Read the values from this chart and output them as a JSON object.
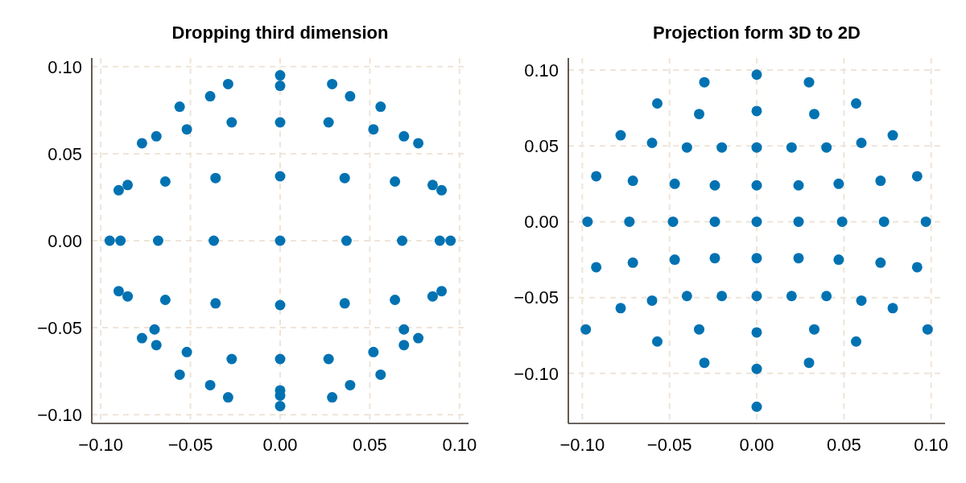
{
  "chart_data": [
    {
      "type": "scatter",
      "title": "Dropping third dimension",
      "color": "#0072b2",
      "marker": "circle",
      "grid": true,
      "xlim": [
        -0.105,
        0.105
      ],
      "ylim": [
        -0.105,
        0.105
      ],
      "xticks": [
        {
          "value": -0.1,
          "label": "−0.10"
        },
        {
          "value": -0.05,
          "label": "−0.05"
        },
        {
          "value": 0,
          "label": "0.00"
        },
        {
          "value": 0.05,
          "label": "0.05"
        },
        {
          "value": 0.1,
          "label": "0.10"
        }
      ],
      "yticks": [
        {
          "value": -0.1,
          "label": "−0.10"
        },
        {
          "value": -0.05,
          "label": "−0.05"
        },
        {
          "value": 0,
          "label": "0.00"
        },
        {
          "value": 0.05,
          "label": "0.05"
        },
        {
          "value": 0.1,
          "label": "0.10"
        }
      ],
      "x": [
        0,
        0,
        -0.029,
        0.029,
        -0.039,
        0.039,
        -0.056,
        0.056,
        -0.027,
        0.027,
        0,
        -0.052,
        0.052,
        -0.069,
        0.069,
        -0.077,
        0.077,
        0,
        -0.036,
        0.036,
        -0.064,
        0.064,
        -0.085,
        0.085,
        -0.09,
        0.09,
        -0.095,
        -0.089,
        -0.068,
        -0.037,
        0,
        0.037,
        0.068,
        0.089,
        0.095,
        -0.09,
        0.09,
        -0.085,
        0.085,
        -0.064,
        0.064,
        -0.036,
        0.036,
        0,
        -0.07,
        0.069,
        -0.077,
        0.077,
        -0.069,
        0.069,
        -0.052,
        0.052,
        -0.027,
        0.027,
        0,
        -0.056,
        0.056,
        -0.039,
        0.039,
        -0.029,
        0.029,
        0,
        0,
        0
      ],
      "values": [
        0.095,
        0.089,
        0.09,
        0.09,
        0.083,
        0.083,
        0.077,
        0.077,
        0.068,
        0.068,
        0.068,
        0.064,
        0.064,
        0.06,
        0.06,
        0.056,
        0.056,
        0.037,
        0.036,
        0.036,
        0.034,
        0.034,
        0.032,
        0.032,
        0.029,
        0.029,
        0,
        0,
        0,
        0,
        0,
        0,
        0,
        0,
        0,
        -0.029,
        -0.029,
        -0.032,
        -0.032,
        -0.034,
        -0.034,
        -0.036,
        -0.036,
        -0.037,
        -0.051,
        -0.051,
        -0.056,
        -0.056,
        -0.06,
        -0.06,
        -0.064,
        -0.064,
        -0.068,
        -0.068,
        -0.068,
        -0.077,
        -0.077,
        -0.083,
        -0.083,
        -0.09,
        -0.09,
        -0.086,
        -0.089,
        -0.095
      ]
    },
    {
      "type": "scatter",
      "title": "Projection form 3D to 2D",
      "color": "#0072b2",
      "marker": "circle",
      "grid": true,
      "xlim": [
        -0.108,
        0.108
      ],
      "ylim": [
        -0.133,
        0.108
      ],
      "xticks": [
        {
          "value": -0.1,
          "label": "−0.10"
        },
        {
          "value": -0.05,
          "label": "−0.05"
        },
        {
          "value": 0,
          "label": "0.00"
        },
        {
          "value": 0.05,
          "label": "0.05"
        },
        {
          "value": 0.1,
          "label": "0.10"
        }
      ],
      "yticks": [
        {
          "value": -0.1,
          "label": "−0.10"
        },
        {
          "value": -0.05,
          "label": "−0.05"
        },
        {
          "value": 0,
          "label": "0.00"
        },
        {
          "value": 0.05,
          "label": "0.05"
        },
        {
          "value": 0.1,
          "label": "0.10"
        }
      ],
      "x": [
        0,
        -0.03,
        0.03,
        -0.057,
        0.057,
        0,
        -0.033,
        0.033,
        -0.078,
        0.078,
        -0.06,
        0.06,
        -0.04,
        0.04,
        -0.02,
        0.02,
        0,
        -0.092,
        0.092,
        -0.071,
        0.071,
        -0.047,
        0.047,
        -0.024,
        0.024,
        0,
        -0.097,
        -0.073,
        -0.048,
        -0.024,
        0,
        0.024,
        0.049,
        0.073,
        0.097,
        -0.092,
        0.092,
        -0.071,
        0.071,
        -0.047,
        0.047,
        -0.024,
        0.024,
        0,
        -0.06,
        0.06,
        -0.078,
        0.078,
        -0.04,
        0.04,
        -0.02,
        0.02,
        0,
        -0.098,
        0.098,
        -0.033,
        0.033,
        0,
        -0.057,
        0.057,
        -0.03,
        0.03,
        0,
        0
      ],
      "values": [
        0.097,
        0.092,
        0.092,
        0.078,
        0.078,
        0.073,
        0.071,
        0.071,
        0.057,
        0.057,
        0.052,
        0.052,
        0.049,
        0.049,
        0.049,
        0.049,
        0.049,
        0.03,
        0.03,
        0.027,
        0.027,
        0.025,
        0.025,
        0.024,
        0.024,
        0.024,
        0,
        0,
        0,
        0,
        0,
        0,
        0,
        0,
        0,
        -0.03,
        -0.03,
        -0.027,
        -0.027,
        -0.025,
        -0.025,
        -0.024,
        -0.024,
        -0.024,
        -0.052,
        -0.052,
        -0.057,
        -0.057,
        -0.049,
        -0.049,
        -0.049,
        -0.049,
        -0.049,
        -0.071,
        -0.071,
        -0.071,
        -0.071,
        -0.073,
        -0.079,
        -0.079,
        -0.093,
        -0.093,
        -0.097,
        -0.122
      ]
    }
  ]
}
